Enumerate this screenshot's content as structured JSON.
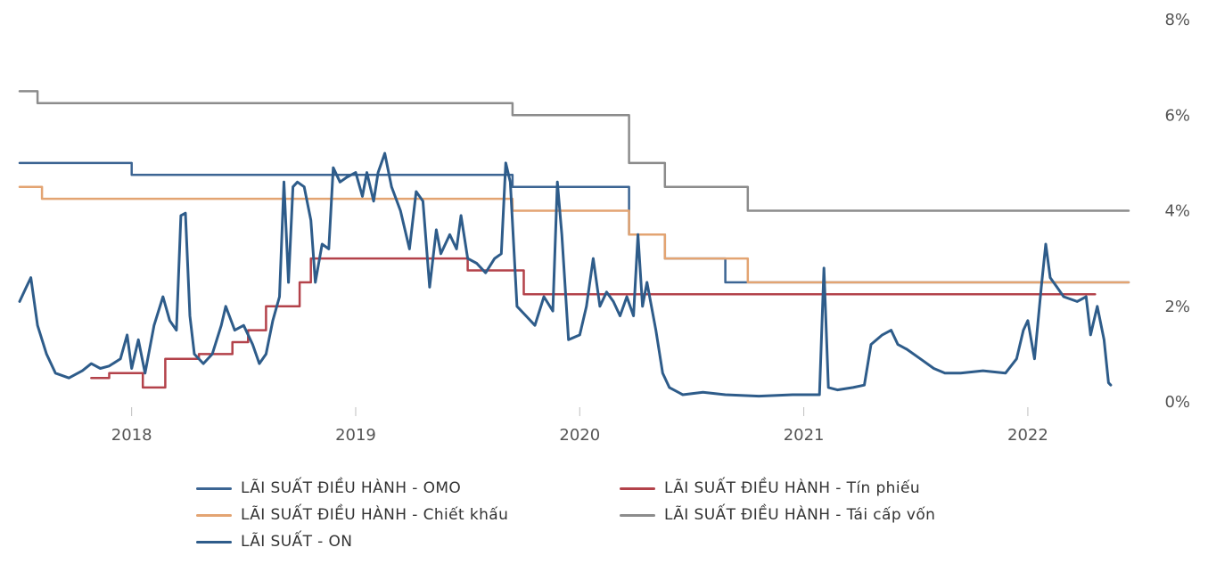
{
  "chart_data": {
    "type": "line",
    "x_range": [
      2017.5,
      2022.45
    ],
    "ylim": [
      0,
      8
    ],
    "x_ticks": [
      {
        "value": 2018,
        "label": "2018"
      },
      {
        "value": 2019,
        "label": "2019"
      },
      {
        "value": 2020,
        "label": "2020"
      },
      {
        "value": 2021,
        "label": "2021"
      },
      {
        "value": 2022,
        "label": "2022"
      }
    ],
    "y_ticks": [
      {
        "value": 0,
        "label": "0%"
      },
      {
        "value": 2,
        "label": "2%"
      },
      {
        "value": 4,
        "label": "4%"
      },
      {
        "value": 6,
        "label": "6%"
      },
      {
        "value": 8,
        "label": "8%"
      }
    ],
    "y_axis_position": "right",
    "grid": false,
    "legend_position": "bottom",
    "series": [
      {
        "name": "LÃI SUẤT ĐIỀU HÀNH - OMO",
        "color": "#3c6593",
        "step": true,
        "points": [
          [
            2017.5,
            5.0
          ],
          [
            2018.0,
            5.0
          ],
          [
            2018.0,
            4.75
          ],
          [
            2019.7,
            4.75
          ],
          [
            2019.7,
            4.5
          ],
          [
            2020.22,
            4.5
          ],
          [
            2020.22,
            3.5
          ],
          [
            2020.38,
            3.5
          ],
          [
            2020.38,
            3.0
          ],
          [
            2020.65,
            3.0
          ],
          [
            2020.65,
            2.5
          ],
          [
            2022.45,
            2.5
          ]
        ]
      },
      {
        "name": "LÃI SUẤT ĐIỀU HÀNH - Tín phiếu",
        "color": "#b3424a",
        "step": true,
        "points": [
          [
            2017.82,
            0.5
          ],
          [
            2017.9,
            0.5
          ],
          [
            2017.9,
            0.6
          ],
          [
            2018.05,
            0.6
          ],
          [
            2018.05,
            0.3
          ],
          [
            2018.15,
            0.3
          ],
          [
            2018.15,
            0.9
          ],
          [
            2018.3,
            0.9
          ],
          [
            2018.3,
            1.0
          ],
          [
            2018.45,
            1.0
          ],
          [
            2018.45,
            1.25
          ],
          [
            2018.52,
            1.25
          ],
          [
            2018.52,
            1.5
          ],
          [
            2018.6,
            1.5
          ],
          [
            2018.6,
            2.0
          ],
          [
            2018.75,
            2.0
          ],
          [
            2018.75,
            2.5
          ],
          [
            2018.8,
            2.5
          ],
          [
            2018.8,
            3.0
          ],
          [
            2019.5,
            3.0
          ],
          [
            2019.5,
            2.75
          ],
          [
            2019.75,
            2.75
          ],
          [
            2019.75,
            2.25
          ],
          [
            2022.3,
            2.25
          ]
        ]
      },
      {
        "name": "LÃI SUẤT ĐIỀU HÀNH - Chiết khấu",
        "color": "#e3a472",
        "step": true,
        "points": [
          [
            2017.5,
            4.5
          ],
          [
            2017.6,
            4.5
          ],
          [
            2017.6,
            4.25
          ],
          [
            2019.7,
            4.25
          ],
          [
            2019.7,
            4.0
          ],
          [
            2020.22,
            4.0
          ],
          [
            2020.22,
            3.5
          ],
          [
            2020.38,
            3.5
          ],
          [
            2020.38,
            3.0
          ],
          [
            2020.75,
            3.0
          ],
          [
            2020.75,
            2.5
          ],
          [
            2022.45,
            2.5
          ]
        ]
      },
      {
        "name": "LÃI SUẤT ĐIỀU HÀNH - Tái cấp vốn",
        "color": "#8c8c8c",
        "step": true,
        "points": [
          [
            2017.5,
            6.5
          ],
          [
            2017.58,
            6.5
          ],
          [
            2017.58,
            6.25
          ],
          [
            2019.7,
            6.25
          ],
          [
            2019.7,
            6.0
          ],
          [
            2020.22,
            6.0
          ],
          [
            2020.22,
            5.0
          ],
          [
            2020.38,
            5.0
          ],
          [
            2020.38,
            4.5
          ],
          [
            2020.75,
            4.5
          ],
          [
            2020.75,
            4.0
          ],
          [
            2022.45,
            4.0
          ]
        ]
      },
      {
        "name": "LÃI SUẤT - ON",
        "color": "#2e5c8a",
        "step": false,
        "points": [
          [
            2017.5,
            2.1
          ],
          [
            2017.53,
            2.4
          ],
          [
            2017.55,
            2.6
          ],
          [
            2017.58,
            1.6
          ],
          [
            2017.62,
            1.0
          ],
          [
            2017.66,
            0.6
          ],
          [
            2017.72,
            0.5
          ],
          [
            2017.78,
            0.65
          ],
          [
            2017.82,
            0.8
          ],
          [
            2017.86,
            0.7
          ],
          [
            2017.9,
            0.75
          ],
          [
            2017.95,
            0.9
          ],
          [
            2017.98,
            1.4
          ],
          [
            2018.0,
            0.7
          ],
          [
            2018.03,
            1.3
          ],
          [
            2018.06,
            0.6
          ],
          [
            2018.1,
            1.6
          ],
          [
            2018.14,
            2.2
          ],
          [
            2018.17,
            1.7
          ],
          [
            2018.2,
            1.5
          ],
          [
            2018.22,
            3.9
          ],
          [
            2018.24,
            3.95
          ],
          [
            2018.26,
            1.8
          ],
          [
            2018.28,
            1.0
          ],
          [
            2018.32,
            0.8
          ],
          [
            2018.36,
            1.0
          ],
          [
            2018.4,
            1.6
          ],
          [
            2018.42,
            2.0
          ],
          [
            2018.46,
            1.5
          ],
          [
            2018.5,
            1.6
          ],
          [
            2018.54,
            1.2
          ],
          [
            2018.57,
            0.8
          ],
          [
            2018.6,
            1.0
          ],
          [
            2018.63,
            1.7
          ],
          [
            2018.66,
            2.2
          ],
          [
            2018.68,
            4.6
          ],
          [
            2018.7,
            2.5
          ],
          [
            2018.72,
            4.5
          ],
          [
            2018.74,
            4.6
          ],
          [
            2018.77,
            4.5
          ],
          [
            2018.8,
            3.8
          ],
          [
            2018.82,
            2.5
          ],
          [
            2018.85,
            3.3
          ],
          [
            2018.88,
            3.2
          ],
          [
            2018.9,
            4.9
          ],
          [
            2018.93,
            4.6
          ],
          [
            2018.96,
            4.7
          ],
          [
            2019.0,
            4.8
          ],
          [
            2019.03,
            4.3
          ],
          [
            2019.05,
            4.8
          ],
          [
            2019.08,
            4.2
          ],
          [
            2019.1,
            4.8
          ],
          [
            2019.13,
            5.2
          ],
          [
            2019.16,
            4.5
          ],
          [
            2019.2,
            4.0
          ],
          [
            2019.24,
            3.2
          ],
          [
            2019.27,
            4.4
          ],
          [
            2019.3,
            4.2
          ],
          [
            2019.33,
            2.4
          ],
          [
            2019.36,
            3.6
          ],
          [
            2019.38,
            3.1
          ],
          [
            2019.42,
            3.5
          ],
          [
            2019.45,
            3.2
          ],
          [
            2019.47,
            3.9
          ],
          [
            2019.5,
            3.0
          ],
          [
            2019.54,
            2.9
          ],
          [
            2019.58,
            2.7
          ],
          [
            2019.62,
            3.0
          ],
          [
            2019.65,
            3.1
          ],
          [
            2019.67,
            5.0
          ],
          [
            2019.69,
            4.6
          ],
          [
            2019.72,
            2.0
          ],
          [
            2019.76,
            1.8
          ],
          [
            2019.8,
            1.6
          ],
          [
            2019.84,
            2.2
          ],
          [
            2019.88,
            1.9
          ],
          [
            2019.9,
            4.6
          ],
          [
            2019.92,
            3.5
          ],
          [
            2019.95,
            1.3
          ],
          [
            2020.0,
            1.4
          ],
          [
            2020.03,
            2.0
          ],
          [
            2020.06,
            3.0
          ],
          [
            2020.09,
            2.0
          ],
          [
            2020.12,
            2.3
          ],
          [
            2020.15,
            2.1
          ],
          [
            2020.18,
            1.8
          ],
          [
            2020.21,
            2.2
          ],
          [
            2020.24,
            1.8
          ],
          [
            2020.26,
            3.5
          ],
          [
            2020.28,
            2.0
          ],
          [
            2020.3,
            2.5
          ],
          [
            2020.32,
            2.0
          ],
          [
            2020.34,
            1.5
          ],
          [
            2020.37,
            0.6
          ],
          [
            2020.4,
            0.3
          ],
          [
            2020.46,
            0.15
          ],
          [
            2020.55,
            0.2
          ],
          [
            2020.65,
            0.15
          ],
          [
            2020.8,
            0.12
          ],
          [
            2020.95,
            0.15
          ],
          [
            2021.07,
            0.15
          ],
          [
            2021.09,
            2.8
          ],
          [
            2021.11,
            0.3
          ],
          [
            2021.15,
            0.25
          ],
          [
            2021.22,
            0.3
          ],
          [
            2021.27,
            0.35
          ],
          [
            2021.3,
            1.2
          ],
          [
            2021.35,
            1.4
          ],
          [
            2021.39,
            1.5
          ],
          [
            2021.42,
            1.2
          ],
          [
            2021.46,
            1.1
          ],
          [
            2021.52,
            0.9
          ],
          [
            2021.58,
            0.7
          ],
          [
            2021.63,
            0.6
          ],
          [
            2021.7,
            0.6
          ],
          [
            2021.8,
            0.65
          ],
          [
            2021.9,
            0.6
          ],
          [
            2021.95,
            0.9
          ],
          [
            2021.98,
            1.5
          ],
          [
            2022.0,
            1.7
          ],
          [
            2022.03,
            0.9
          ],
          [
            2022.06,
            2.4
          ],
          [
            2022.08,
            3.3
          ],
          [
            2022.1,
            2.6
          ],
          [
            2022.13,
            2.4
          ],
          [
            2022.16,
            2.2
          ],
          [
            2022.22,
            2.1
          ],
          [
            2022.26,
            2.2
          ],
          [
            2022.28,
            1.4
          ],
          [
            2022.31,
            2.0
          ],
          [
            2022.34,
            1.3
          ],
          [
            2022.36,
            0.4
          ],
          [
            2022.37,
            0.35
          ]
        ]
      }
    ]
  },
  "legend": [
    {
      "label": "LÃI SUẤT ĐIỀU HÀNH - OMO",
      "color": "#3c6593"
    },
    {
      "label": "LÃI SUẤT ĐIỀU HÀNH - Tín phiếu",
      "color": "#b3424a"
    },
    {
      "label": "LÃI SUẤT ĐIỀU HÀNH - Chiết khấu",
      "color": "#e3a472"
    },
    {
      "label": "LÃI SUẤT ĐIỀU HÀNH - Tái cấp vốn",
      "color": "#8c8c8c"
    },
    {
      "label": "LÃI SUẤT - ON",
      "color": "#2e5c8a"
    }
  ]
}
